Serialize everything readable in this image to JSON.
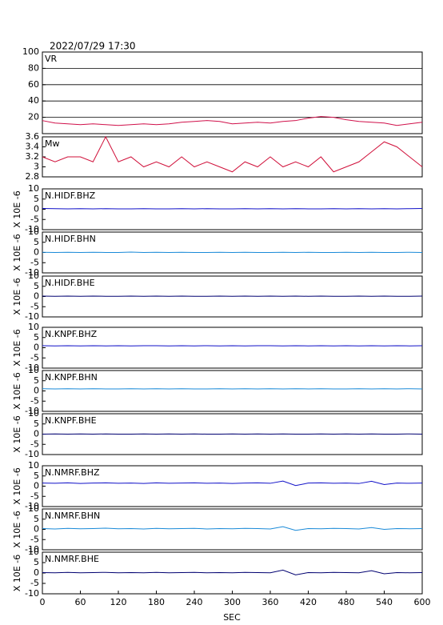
{
  "title": "2022/07/29 17:30",
  "xlabel": "SEC",
  "chart_data": [
    {
      "type": "line",
      "title": "VR",
      "x": [
        0,
        20,
        40,
        60,
        80,
        100,
        120,
        140,
        160,
        180,
        200,
        220,
        240,
        260,
        280,
        300,
        320,
        340,
        360,
        380,
        400,
        420,
        440,
        460,
        480,
        500,
        520,
        540,
        560,
        580,
        600
      ],
      "values": [
        16,
        13,
        12,
        11,
        12,
        11,
        10,
        11,
        12,
        11,
        12,
        14,
        15,
        16,
        15,
        12,
        13,
        14,
        13,
        15,
        16,
        19,
        21,
        20,
        17,
        15,
        14,
        13,
        10,
        12,
        14
      ],
      "color": "#d0104a",
      "xlim": [
        0,
        600
      ],
      "ylim": [
        0,
        100
      ],
      "yticks": [
        20,
        40,
        60,
        80,
        100
      ],
      "grid": true
    },
    {
      "type": "line",
      "title": "Mw",
      "x": [
        0,
        20,
        40,
        60,
        80,
        100,
        120,
        140,
        160,
        180,
        200,
        220,
        240,
        260,
        280,
        300,
        320,
        340,
        360,
        380,
        400,
        420,
        440,
        460,
        480,
        500,
        520,
        540,
        560,
        580,
        600
      ],
      "values": [
        3.2,
        3.1,
        3.2,
        3.2,
        3.1,
        3.6,
        3.1,
        3.2,
        3.0,
        3.1,
        3.0,
        3.2,
        3.0,
        3.1,
        3.0,
        2.9,
        3.1,
        3.0,
        3.2,
        3.0,
        3.1,
        3.0,
        3.2,
        2.9,
        3.0,
        3.1,
        3.3,
        3.5,
        3.4,
        3.2,
        3.0
      ],
      "color": "#d0103a",
      "xlim": [
        0,
        600
      ],
      "ylim": [
        2.8,
        3.6
      ],
      "yticks": [
        2.8,
        3.0,
        3.2,
        3.4,
        3.6
      ],
      "grid": false
    },
    {
      "type": "line",
      "title": "N.HIDF.BHZ",
      "ylabel": "X 10E -6",
      "x": [
        0,
        20,
        40,
        60,
        80,
        100,
        120,
        140,
        160,
        180,
        200,
        220,
        240,
        260,
        280,
        300,
        320,
        340,
        360,
        380,
        400,
        420,
        440,
        460,
        480,
        500,
        520,
        540,
        560,
        580,
        600
      ],
      "values": [
        0.4,
        0.3,
        0.2,
        0.3,
        0.2,
        0.3,
        0.2,
        0.2,
        0.3,
        0.2,
        0.2,
        0.3,
        0.2,
        0.3,
        0.2,
        0.2,
        0.3,
        0.2,
        0.3,
        0.2,
        0.3,
        0.2,
        0.2,
        0.3,
        0.2,
        0.3,
        0.2,
        0.3,
        0.2,
        0.3,
        0.4
      ],
      "color": "#1010c8",
      "xlim": [
        0,
        600
      ],
      "ylim": [
        -10,
        10
      ],
      "yticks": [
        -10,
        -5,
        0,
        5,
        10
      ],
      "grid": false
    },
    {
      "type": "line",
      "title": "N.HIDF.BHN",
      "ylabel": "X 10E -6",
      "x": [
        0,
        20,
        40,
        60,
        80,
        100,
        120,
        140,
        160,
        180,
        200,
        220,
        240,
        260,
        280,
        300,
        320,
        340,
        360,
        380,
        400,
        420,
        440,
        460,
        480,
        500,
        520,
        540,
        560,
        580,
        600
      ],
      "values": [
        0.1,
        0.0,
        0.1,
        0.0,
        0.1,
        0.0,
        0.0,
        0.2,
        0.0,
        0.1,
        0.0,
        0.1,
        0.0,
        0.0,
        0.1,
        0.0,
        0.1,
        0.0,
        0.0,
        0.1,
        0.0,
        0.1,
        0.0,
        0.0,
        0.1,
        0.0,
        0.1,
        0.0,
        0.0,
        0.1,
        0.0
      ],
      "color": "#1a8ad8",
      "xlim": [
        0,
        600
      ],
      "ylim": [
        -10,
        10
      ],
      "yticks": [
        -10,
        -5,
        0,
        5,
        10
      ],
      "grid": false
    },
    {
      "type": "line",
      "title": "N.HIDF.BHE",
      "ylabel": "X 10E -6",
      "x": [
        0,
        20,
        40,
        60,
        80,
        100,
        120,
        140,
        160,
        180,
        200,
        220,
        240,
        260,
        280,
        300,
        320,
        340,
        360,
        380,
        400,
        420,
        440,
        460,
        480,
        500,
        520,
        540,
        560,
        580,
        600
      ],
      "values": [
        0.2,
        0.1,
        0.2,
        0.1,
        0.2,
        0.1,
        0.1,
        0.2,
        0.1,
        0.2,
        0.1,
        0.2,
        0.1,
        0.1,
        0.2,
        0.1,
        0.2,
        0.1,
        0.2,
        0.1,
        0.2,
        0.1,
        0.2,
        0.1,
        0.1,
        0.2,
        0.1,
        0.2,
        0.1,
        0.1,
        0.2
      ],
      "color": "#000070",
      "xlim": [
        0,
        600
      ],
      "ylim": [
        -10,
        10
      ],
      "yticks": [
        -10,
        -5,
        0,
        5,
        10
      ],
      "grid": false
    },
    {
      "type": "line",
      "title": "N.KNPF.BHZ",
      "ylabel": "X 10E -6",
      "x": [
        0,
        20,
        40,
        60,
        80,
        100,
        120,
        140,
        160,
        180,
        200,
        220,
        240,
        260,
        280,
        300,
        320,
        340,
        360,
        380,
        400,
        420,
        440,
        460,
        480,
        500,
        520,
        540,
        560,
        580,
        600
      ],
      "values": [
        1.0,
        0.9,
        1.0,
        0.9,
        1.0,
        0.9,
        1.0,
        0.9,
        1.0,
        1.0,
        0.9,
        1.0,
        0.9,
        1.0,
        0.9,
        1.0,
        0.9,
        1.0,
        1.0,
        0.9,
        1.0,
        0.9,
        1.0,
        0.9,
        1.0,
        0.9,
        1.0,
        0.9,
        1.0,
        0.9,
        1.0
      ],
      "color": "#1010c8",
      "xlim": [
        0,
        600
      ],
      "ylim": [
        -10,
        10
      ],
      "yticks": [
        -10,
        -5,
        0,
        5,
        10
      ],
      "grid": false
    },
    {
      "type": "line",
      "title": "N.KNPF.BHN",
      "ylabel": "X 10E -6",
      "x": [
        0,
        20,
        40,
        60,
        80,
        100,
        120,
        140,
        160,
        180,
        200,
        220,
        240,
        260,
        280,
        300,
        320,
        340,
        360,
        380,
        400,
        420,
        440,
        460,
        480,
        500,
        520,
        540,
        560,
        580,
        600
      ],
      "values": [
        1.1,
        1.0,
        1.1,
        1.0,
        1.1,
        1.0,
        1.0,
        1.1,
        1.0,
        1.1,
        1.0,
        1.1,
        1.0,
        1.0,
        1.1,
        1.0,
        1.1,
        1.0,
        1.1,
        1.0,
        1.1,
        1.0,
        1.1,
        1.0,
        1.0,
        1.1,
        1.0,
        1.1,
        1.0,
        1.1,
        1.0
      ],
      "color": "#1a8ad8",
      "xlim": [
        0,
        600
      ],
      "ylim": [
        -10,
        10
      ],
      "yticks": [
        -10,
        -5,
        0,
        5,
        10
      ],
      "grid": false
    },
    {
      "type": "line",
      "title": "N.KNPF.BHE",
      "ylabel": "X 10E -6",
      "x": [
        0,
        20,
        40,
        60,
        80,
        100,
        120,
        140,
        160,
        180,
        200,
        220,
        240,
        260,
        280,
        300,
        320,
        340,
        360,
        380,
        400,
        420,
        440,
        460,
        480,
        500,
        520,
        540,
        560,
        580,
        600
      ],
      "values": [
        0.0,
        0.1,
        0.0,
        0.1,
        0.0,
        0.1,
        0.0,
        0.0,
        0.1,
        0.0,
        0.1,
        0.0,
        0.1,
        0.0,
        0.0,
        0.1,
        0.0,
        0.1,
        0.0,
        0.1,
        0.0,
        0.0,
        0.1,
        0.0,
        0.1,
        0.0,
        0.1,
        0.0,
        0.0,
        0.1,
        0.0
      ],
      "color": "#000070",
      "xlim": [
        0,
        600
      ],
      "ylim": [
        -10,
        10
      ],
      "yticks": [
        -10,
        -5,
        0,
        5,
        10
      ],
      "grid": false
    },
    {
      "type": "line",
      "title": "N.NMRF.BHZ",
      "ylabel": "X 10E -6",
      "x": [
        0,
        20,
        40,
        60,
        80,
        100,
        120,
        140,
        160,
        180,
        200,
        220,
        240,
        260,
        280,
        300,
        320,
        340,
        360,
        380,
        400,
        420,
        440,
        460,
        480,
        500,
        520,
        540,
        560,
        580,
        600
      ],
      "values": [
        1.5,
        1.4,
        1.6,
        1.3,
        1.5,
        1.6,
        1.4,
        1.5,
        1.3,
        1.6,
        1.4,
        1.5,
        1.6,
        1.4,
        1.5,
        1.3,
        1.5,
        1.6,
        1.4,
        2.5,
        0.3,
        1.5,
        1.6,
        1.4,
        1.5,
        1.3,
        2.4,
        0.8,
        1.5,
        1.4,
        1.5
      ],
      "color": "#1010c8",
      "xlim": [
        0,
        600
      ],
      "ylim": [
        -10,
        10
      ],
      "yticks": [
        -10,
        -5,
        0,
        5,
        10
      ],
      "grid": false
    },
    {
      "type": "line",
      "title": "N.NMRF.BHN",
      "ylabel": "X 10E -6",
      "x": [
        0,
        20,
        40,
        60,
        80,
        100,
        120,
        140,
        160,
        180,
        200,
        220,
        240,
        260,
        280,
        300,
        320,
        340,
        360,
        380,
        400,
        420,
        440,
        460,
        480,
        500,
        520,
        540,
        560,
        580,
        600
      ],
      "values": [
        0.4,
        0.2,
        0.5,
        0.3,
        0.4,
        0.6,
        0.3,
        0.4,
        0.2,
        0.5,
        0.3,
        0.4,
        0.5,
        0.2,
        0.4,
        0.3,
        0.5,
        0.4,
        0.2,
        1.3,
        -0.5,
        0.4,
        0.3,
        0.5,
        0.4,
        0.2,
        0.9,
        0.0,
        0.4,
        0.3,
        0.4
      ],
      "color": "#1a8ad8",
      "xlim": [
        0,
        600
      ],
      "ylim": [
        -10,
        10
      ],
      "yticks": [
        -10,
        -5,
        0,
        5,
        10
      ],
      "grid": false
    },
    {
      "type": "line",
      "title": "N.NMRF.BHE",
      "ylabel": "X 10E -6",
      "x": [
        0,
        20,
        40,
        60,
        80,
        100,
        120,
        140,
        160,
        180,
        200,
        220,
        240,
        260,
        280,
        300,
        320,
        340,
        360,
        380,
        400,
        420,
        440,
        460,
        480,
        500,
        520,
        540,
        560,
        580,
        600
      ],
      "values": [
        0.2,
        0.1,
        0.3,
        0.1,
        0.2,
        0.3,
        0.1,
        0.2,
        0.1,
        0.3,
        0.1,
        0.2,
        0.3,
        0.1,
        0.2,
        0.1,
        0.3,
        0.2,
        0.1,
        1.4,
        -0.9,
        0.2,
        0.1,
        0.3,
        0.2,
        0.1,
        1.1,
        -0.4,
        0.2,
        0.1,
        0.2
      ],
      "color": "#000070",
      "xlim": [
        0,
        600
      ],
      "ylim": [
        -10,
        10
      ],
      "yticks": [
        -10,
        -5,
        0,
        5,
        10
      ],
      "grid": false,
      "xticks": [
        0,
        60,
        120,
        180,
        240,
        300,
        360,
        420,
        480,
        540,
        600
      ]
    }
  ]
}
